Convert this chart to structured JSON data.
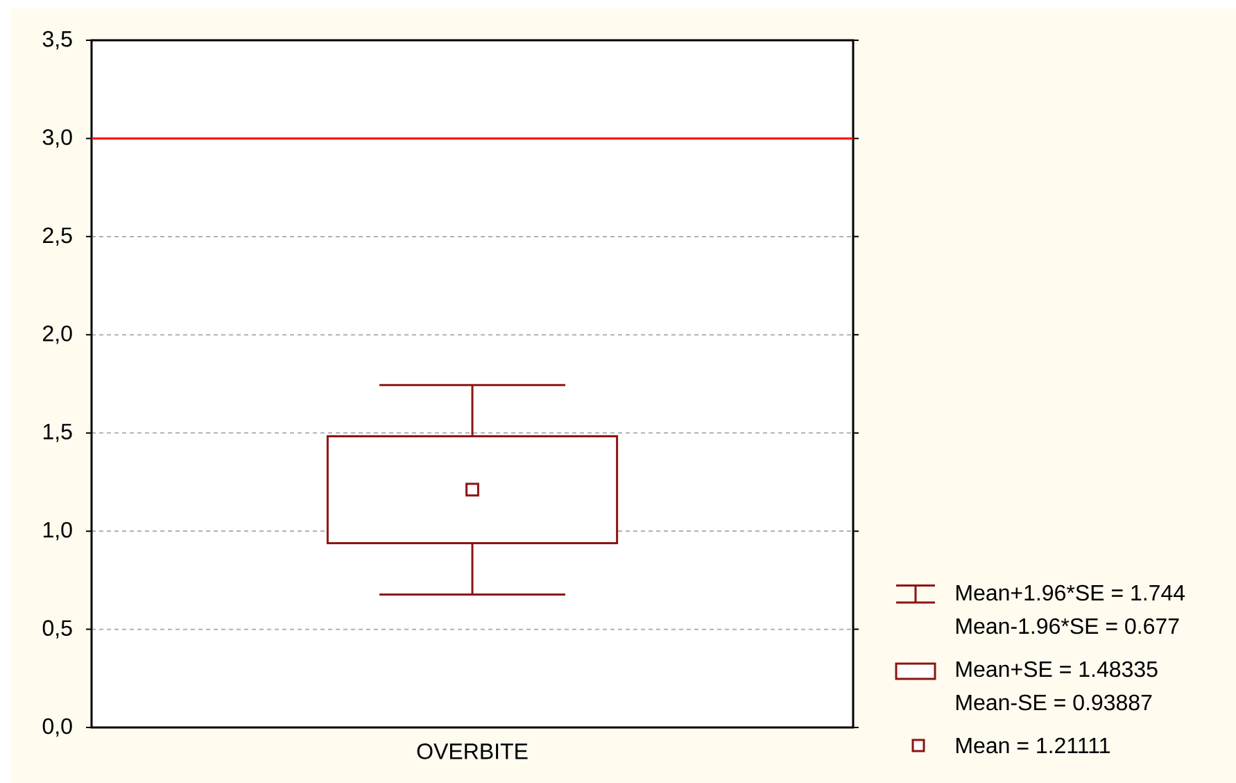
{
  "chart_data": {
    "type": "box",
    "categories": [
      "OVERBITE"
    ],
    "boxes": [
      {
        "low": 0.677,
        "q1": 0.93887,
        "q3": 1.48335,
        "high": 1.744,
        "mean": 1.21111
      }
    ],
    "color": "#8c1414",
    "marker": "square",
    "ylim": [
      0,
      3.5
    ],
    "yticks": [
      {
        "value": 0,
        "label": "0,0"
      },
      {
        "value": 0.5,
        "label": "0,5"
      },
      {
        "value": 1,
        "label": "1,0"
      },
      {
        "value": 1.5,
        "label": "1,5"
      },
      {
        "value": 2,
        "label": "2,0"
      },
      {
        "value": 2.5,
        "label": "2,5"
      },
      {
        "value": 3,
        "label": "3,0"
      },
      {
        "value": 3.5,
        "label": "3,5"
      }
    ],
    "grid": "y",
    "ref_lines": [
      {
        "axis": "y",
        "value": 3,
        "color": "#ff0000"
      }
    ],
    "annotations": [
      "Mean+1.96*SE = 1.744",
      "Mean-1.96*SE = 0.677",
      "Mean+SE = 1.48335",
      "Mean-SE = 0.93887",
      "Mean = 1.21111"
    ]
  }
}
